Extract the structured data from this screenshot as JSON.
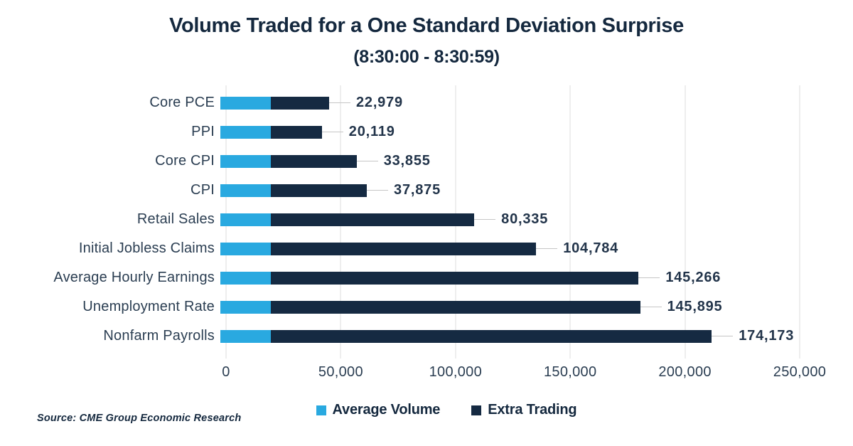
{
  "source": "Source: CME Group Economic Research",
  "colors": {
    "average_volume": "#29A9E0",
    "extra_trading": "#152A42",
    "title_text": "#14283E",
    "axis_text": "#2B3E52",
    "gridline": "#DCDCDC",
    "leader_line": "#C6C6C6"
  },
  "chart_data": {
    "type": "bar",
    "orientation": "horizontal",
    "stacked": true,
    "title": "Volume Traded for a One Standard Deviation Surprise",
    "subtitle": "(8:30:00 - 8:30:59)",
    "categories": [
      "Core PCE",
      "PPI",
      "Core CPI",
      "CPI",
      "Retail Sales",
      "Initial Jobless Claims",
      "Average Hourly Earnings",
      "Unemployment Rate",
      "Nonfarm Payrolls"
    ],
    "series": [
      {
        "name": "Average Volume",
        "color": "#29A9E0",
        "values": [
          20000,
          20000,
          20000,
          20000,
          20000,
          20000,
          20000,
          20000,
          20000
        ]
      },
      {
        "name": "Extra Trading",
        "color": "#152A42",
        "values": [
          22979,
          20119,
          33855,
          37875,
          80335,
          104784,
          145266,
          145895,
          174173
        ]
      }
    ],
    "value_labels": [
      "22,979",
      "20,119",
      "33,855",
      "37,875",
      "80,335",
      "104,784",
      "145,266",
      "145,895",
      "174,173"
    ],
    "x_ticks": [
      "0",
      "50,000",
      "100,000",
      "150,000",
      "200,000",
      "250,000"
    ],
    "xlim": [
      0,
      250000
    ],
    "xlabel": "",
    "ylabel": "",
    "legend_position": "bottom",
    "gridlines": "vertical"
  }
}
